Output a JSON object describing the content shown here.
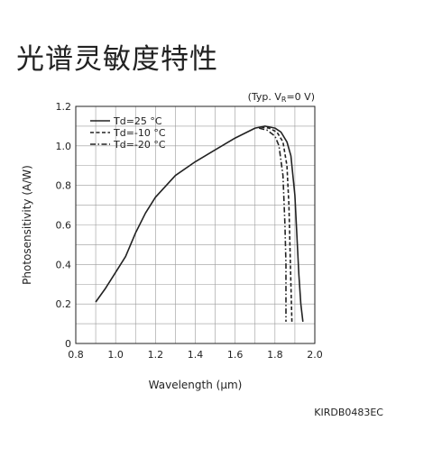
{
  "page_title": "光谱灵敏度特性",
  "chart_data": {
    "type": "line",
    "title": "",
    "condition_label": "(Typ. V",
    "condition_sub": "R",
    "condition_rest": "=0 V)",
    "xlabel": "Wavelength (μm)",
    "ylabel": "Photosensitivity (A/W)",
    "xlim": [
      0.8,
      2.0
    ],
    "ylim": [
      0,
      1.2
    ],
    "xticks": [
      0.8,
      1.0,
      1.2,
      1.4,
      1.6,
      1.8,
      2.0
    ],
    "xtick_labels": [
      "0.8",
      "1.0",
      "1.2",
      "1.4",
      "1.6",
      "1.8",
      "2.0"
    ],
    "yticks": [
      0,
      0.2,
      0.4,
      0.6,
      0.8,
      1.0,
      1.2
    ],
    "ytick_labels": [
      "0",
      "0.2",
      "0.4",
      "0.6",
      "0.8",
      "1.0",
      "1.2"
    ],
    "grid": true,
    "legend_position": "top-left",
    "code_label": "KIRDB0483EC",
    "series": [
      {
        "name": "Td=25 °C",
        "style": "solid",
        "points": [
          [
            0.9,
            0.21
          ],
          [
            0.95,
            0.28
          ],
          [
            1.0,
            0.36
          ],
          [
            1.05,
            0.44
          ],
          [
            1.1,
            0.56
          ],
          [
            1.15,
            0.66
          ],
          [
            1.2,
            0.74
          ],
          [
            1.3,
            0.85
          ],
          [
            1.4,
            0.92
          ],
          [
            1.5,
            0.98
          ],
          [
            1.6,
            1.04
          ],
          [
            1.7,
            1.09
          ],
          [
            1.75,
            1.1
          ],
          [
            1.8,
            1.09
          ],
          [
            1.83,
            1.07
          ],
          [
            1.86,
            1.02
          ],
          [
            1.88,
            0.95
          ],
          [
            1.9,
            0.75
          ],
          [
            1.91,
            0.55
          ],
          [
            1.92,
            0.35
          ],
          [
            1.93,
            0.2
          ],
          [
            1.94,
            0.11
          ]
        ]
      },
      {
        "name": "Td=-10 °C",
        "style": "dashed",
        "points": [
          [
            1.73,
            1.095
          ],
          [
            1.77,
            1.09
          ],
          [
            1.81,
            1.07
          ],
          [
            1.84,
            1.02
          ],
          [
            1.86,
            0.9
          ],
          [
            1.87,
            0.7
          ],
          [
            1.875,
            0.5
          ],
          [
            1.88,
            0.3
          ],
          [
            1.885,
            0.11
          ]
        ]
      },
      {
        "name": "Td=-20 °C",
        "style": "dashdot",
        "points": [
          [
            1.72,
            1.09
          ],
          [
            1.76,
            1.08
          ],
          [
            1.8,
            1.05
          ],
          [
            1.82,
            1.0
          ],
          [
            1.84,
            0.85
          ],
          [
            1.85,
            0.6
          ],
          [
            1.855,
            0.4
          ],
          [
            1.855,
            0.11
          ]
        ]
      }
    ]
  }
}
